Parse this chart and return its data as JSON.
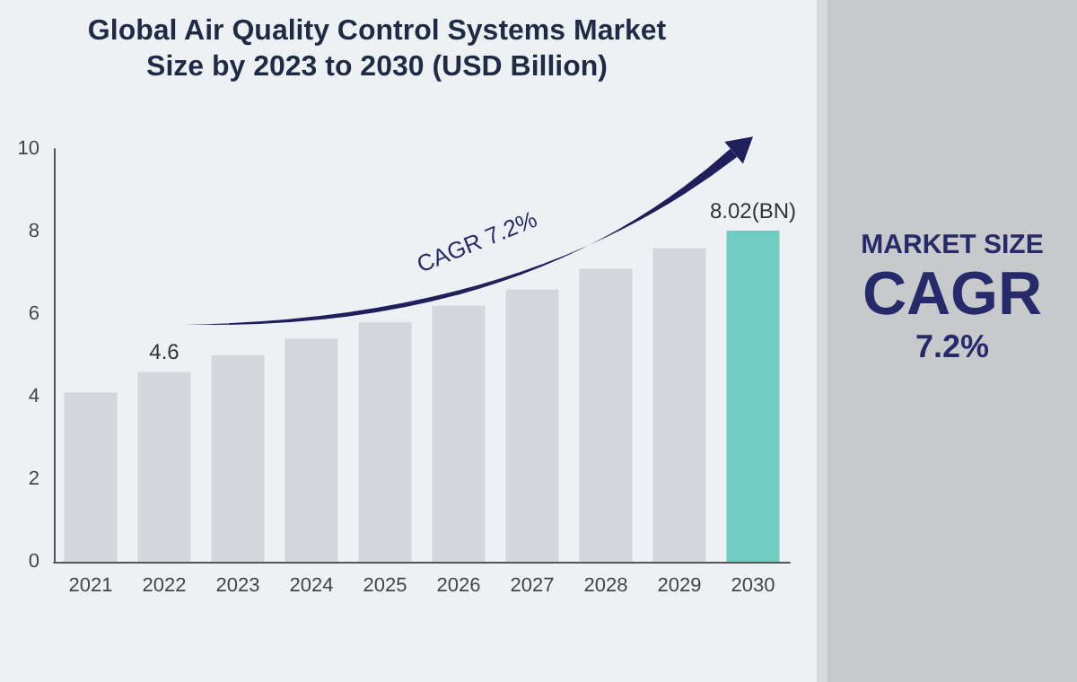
{
  "chart_data": {
    "type": "bar",
    "title": "Global Air Quality Control Systems Market Size by 2023 to 2030 (USD Billion)",
    "categories": [
      "2021",
      "2022",
      "2023",
      "2024",
      "2025",
      "2026",
      "2027",
      "2028",
      "2029",
      "2030"
    ],
    "values": [
      4.1,
      4.6,
      5.0,
      5.4,
      5.8,
      6.2,
      6.6,
      7.1,
      7.6,
      8.02
    ],
    "colors": [
      "#d3d6da",
      "#d3d6da",
      "#d3d6da",
      "#d3d6da",
      "#d3d6da",
      "#d3d6da",
      "#d3d6da",
      "#d3d6da",
      "#d3d6da",
      "#6fcdc1"
    ],
    "value_labels": [
      null,
      "4.6",
      null,
      null,
      null,
      null,
      null,
      null,
      null,
      "8.02(BN)"
    ],
    "ylim": [
      0,
      10
    ],
    "yticks": [
      0,
      2,
      4,
      6,
      8,
      10
    ],
    "grid": false,
    "annotations": [
      "CAGR 7.2%",
      "MARKET SIZE",
      "CAGR",
      "7.2%"
    ]
  }
}
